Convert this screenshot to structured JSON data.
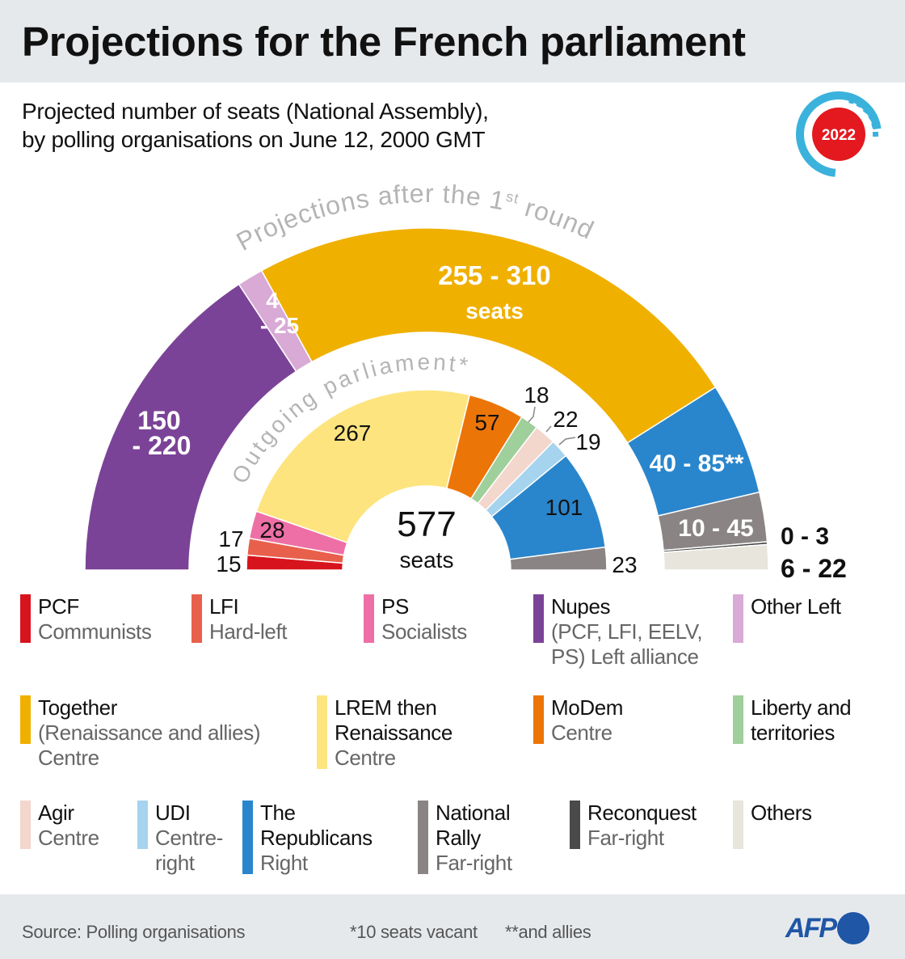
{
  "header": {
    "title": "Projections for the French parliament",
    "subtitle_line1": "Projected number of seats (National Assembly),",
    "subtitle_line2": "by polling organisations on June 12, 2000 GMT",
    "badge_year": "2022"
  },
  "chart_data": {
    "type": "hemicycle",
    "total_label": "577",
    "total_unit": "seats",
    "outer_ring": {
      "title_before": "Projections after the 1",
      "title_sup": "st",
      "title_after": " round",
      "segments": [
        {
          "party": "Nupes",
          "low": 150,
          "high": 220,
          "label_top": "150",
          "label_bottom": "- 220",
          "color": "#7b4397"
        },
        {
          "party": "Other Left",
          "low": 4,
          "high": 25,
          "label_top": "4",
          "label_bottom": "- 25",
          "color": "#d9aad6"
        },
        {
          "party": "Together",
          "low": 255,
          "high": 310,
          "label_top": "255 - 310",
          "label_bottom": "seats",
          "color": "#f0b000"
        },
        {
          "party": "The Republicans",
          "low": 40,
          "high": 85,
          "label_top": "40 - 85**",
          "color": "#2a86cc"
        },
        {
          "party": "National Rally",
          "low": 10,
          "high": 45,
          "label_top": "10 - 45",
          "color": "#8a8584"
        },
        {
          "party": "Reconquest",
          "low": 0,
          "high": 3,
          "label_top": "0 - 3",
          "color": "#4a4a4a"
        },
        {
          "party": "Others",
          "low": 6,
          "high": 22,
          "label_top": "6 - 22",
          "color": "#e7e5dc"
        }
      ]
    },
    "inner_ring": {
      "title": "Outgoing parliament*",
      "segments": [
        {
          "party": "PCF",
          "value": 15,
          "color": "#d7141e"
        },
        {
          "party": "LFI",
          "value": 17,
          "color": "#e8604c"
        },
        {
          "party": "PS",
          "value": 28,
          "color": "#ee6fa6"
        },
        {
          "party": "LREM then Renaissance",
          "value": 267,
          "color": "#fde47f"
        },
        {
          "party": "MoDem",
          "value": 57,
          "color": "#ec7508"
        },
        {
          "party": "Liberty and territories",
          "value": 18,
          "color": "#9fcf9b"
        },
        {
          "party": "Agir",
          "value": 22,
          "color": "#f3d6cc"
        },
        {
          "party": "UDI",
          "value": 19,
          "color": "#a6d3ee"
        },
        {
          "party": "The Republicans",
          "value": 101,
          "color": "#2a86cc"
        },
        {
          "party": "National Rally",
          "value": 23,
          "color": "#8a8584"
        }
      ]
    }
  },
  "legend": [
    {
      "name": "PCF",
      "desc": [
        "Communists"
      ],
      "color": "#d7141e"
    },
    {
      "name": "LFI",
      "desc": [
        "Hard-left"
      ],
      "color": "#e8604c"
    },
    {
      "name": "PS",
      "desc": [
        "Socialists"
      ],
      "color": "#ee6fa6"
    },
    {
      "name": "Nupes",
      "desc": [
        "(PCF, LFI, EELV,",
        "PS) Left alliance"
      ],
      "color": "#7b4397"
    },
    {
      "name": "Other Left",
      "desc": [],
      "color": "#d9aad6"
    },
    {
      "name": "Together",
      "desc": [
        "(Renaissance and allies)",
        "Centre"
      ],
      "color": "#f0b000"
    },
    {
      "name": "LREM then\nRenaissance",
      "desc": [
        "Centre"
      ],
      "color": "#fde47f"
    },
    {
      "name": "MoDem",
      "desc": [
        "Centre"
      ],
      "color": "#ec7508"
    },
    {
      "name": "Liberty and\nterritories",
      "desc": [],
      "color": "#9fcf9b"
    },
    {
      "name": "Agir",
      "desc": [
        "Centre"
      ],
      "color": "#f3d6cc"
    },
    {
      "name": "UDI",
      "desc": [
        "Centre-",
        "right"
      ],
      "color": "#a6d3ee"
    },
    {
      "name": "The\nRepublicans",
      "desc": [
        "Right"
      ],
      "color": "#2a86cc"
    },
    {
      "name": "National\nRally",
      "desc": [
        "Far-right"
      ],
      "color": "#8a8584"
    },
    {
      "name": "Reconquest",
      "desc": [
        "Far-right"
      ],
      "color": "#4a4a4a"
    },
    {
      "name": "Others",
      "desc": [],
      "color": "#e7e5dc"
    }
  ],
  "footer": {
    "source": "Source: Polling organisations",
    "note1": "*10 seats vacant",
    "note2": "**and allies",
    "brand": "AFP"
  }
}
